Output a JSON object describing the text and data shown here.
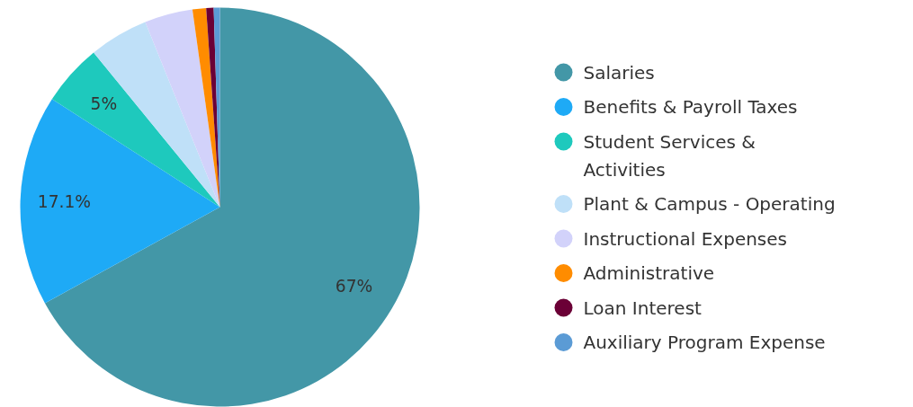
{
  "chart_data": {
    "type": "pie",
    "categories": [
      "Salaries",
      "Benefits & Payroll Taxes",
      "Student Services & Activities",
      "Plant & Campus - Operating",
      "Instructional Expenses",
      "Administrative",
      "Loan Interest",
      "Auxiliary Program Expense"
    ],
    "values": [
      67,
      17.1,
      5,
      4.8,
      3.9,
      1.1,
      0.6,
      0.5
    ],
    "colors": [
      "#4397a7",
      "#1eaaf6",
      "#1ec9bd",
      "#bfe0f8",
      "#d2d2fa",
      "#ff8c00",
      "#6b0036",
      "#5b9bd5"
    ],
    "value_labels": [
      "67%",
      "17.1%",
      "5%",
      null,
      null,
      null,
      null,
      null
    ],
    "legend": "right"
  }
}
